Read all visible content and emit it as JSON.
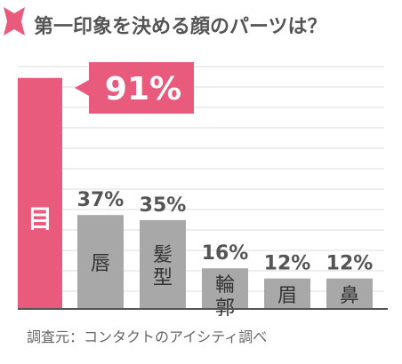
{
  "chart_data": {
    "type": "bar",
    "title": "第一印象を決める顔のパーツは？",
    "categories": [
      "目",
      "唇",
      "髪型",
      "輪郭",
      "眉",
      "鼻"
    ],
    "values": [
      91,
      37,
      35,
      16,
      12,
      12
    ],
    "value_labels": [
      "91%",
      "37%",
      "35%",
      "16%",
      "12%",
      "12%"
    ],
    "unit": "%",
    "highlight_index": 0,
    "ylim": [
      0,
      100
    ],
    "grid": true,
    "source": "調査元：コンタクトのアイシティ調べ"
  },
  "colors": {
    "highlight": "#e85b7c",
    "bar": "#a8a8a8",
    "grid": "#dcdcdc",
    "baseline": "#555555",
    "label": "#555555",
    "source": "#666666",
    "icon": "#e85b7c"
  },
  "icons": {
    "title_icon": "pink-ribbon-icon"
  }
}
